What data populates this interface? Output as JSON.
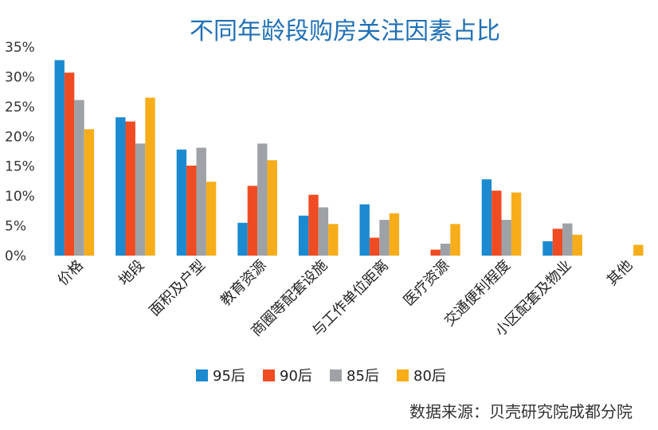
{
  "chart_data": {
    "type": "bar",
    "title": "不同年龄段购房关注因素占比",
    "categories": [
      "价格",
      "地段",
      "面积及户型",
      "教育资源",
      "商圈等配套设施",
      "与工作单位距离",
      "医疗资源",
      "交通便利程度",
      "小区配套及物业",
      "其他"
    ],
    "series": [
      {
        "name": "95后",
        "color": "#1b8ad0",
        "values": [
          32.8,
          23.2,
          17.8,
          5.5,
          6.7,
          8.6,
          0.0,
          12.8,
          2.4,
          0.0
        ]
      },
      {
        "name": "90后",
        "color": "#ef4c23",
        "values": [
          30.7,
          22.5,
          15.1,
          11.7,
          10.2,
          3.0,
          1.0,
          10.9,
          4.5,
          0.0
        ]
      },
      {
        "name": "85后",
        "color": "#9ea2a6",
        "values": [
          26.1,
          18.8,
          18.1,
          18.8,
          8.1,
          6.0,
          2.0,
          6.0,
          5.4,
          0.0
        ]
      },
      {
        "name": "80后",
        "color": "#f7ad1a",
        "values": [
          21.2,
          26.5,
          12.4,
          16.0,
          5.3,
          7.1,
          5.3,
          10.6,
          3.5,
          1.8
        ]
      }
    ],
    "ylim": [
      0,
      35
    ],
    "yticks": [
      "0%",
      "5%",
      "10%",
      "15%",
      "20%",
      "25%",
      "30%",
      "35%"
    ],
    "grid": false,
    "legend_position": "bottom-center"
  },
  "source": "数据来源：贝壳研究院成都分院"
}
